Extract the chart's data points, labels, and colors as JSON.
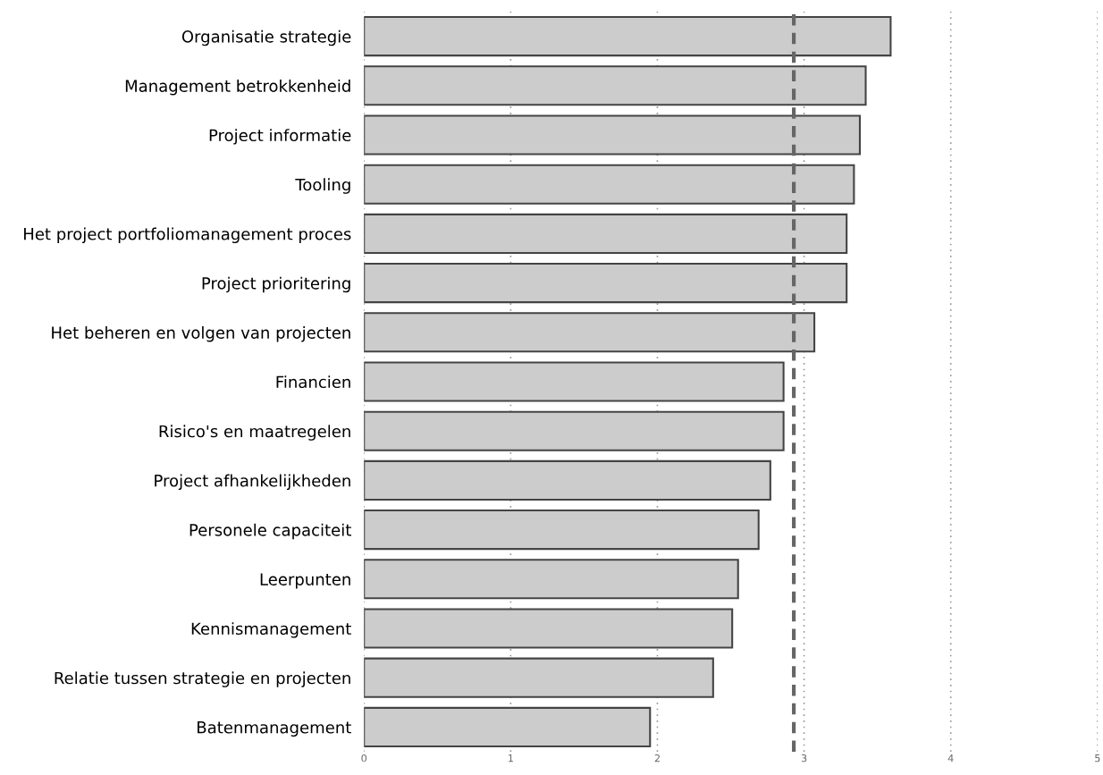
{
  "chart_data": {
    "type": "bar",
    "orientation": "horizontal",
    "categories": [
      "Organisatie strategie",
      "Management betrokkenheid",
      "Project informatie",
      "Tooling",
      "Het project portfoliomanagement proces",
      "Project prioritering",
      "Het beheren en volgen van projecten",
      "Financien",
      "Risico's en maatregelen",
      "Project afhankelijkheden",
      "Personele capaciteit",
      "Leerpunten",
      "Kennismanagement",
      "Relatie tussen strategie en projecten",
      "Batenmanagement"
    ],
    "values": [
      3.59,
      3.42,
      3.38,
      3.34,
      3.29,
      3.29,
      3.07,
      2.86,
      2.86,
      2.77,
      2.69,
      2.55,
      2.51,
      2.38,
      1.95
    ],
    "color": "#cccccc",
    "xlim": [
      0,
      5
    ],
    "xticks": [
      0,
      1,
      2,
      3,
      4,
      5
    ],
    "grid": "x",
    "ref_lines": [
      {
        "axis": "x",
        "value": 2.93,
        "color": "#666666",
        "line_style": "dashed"
      }
    ]
  }
}
